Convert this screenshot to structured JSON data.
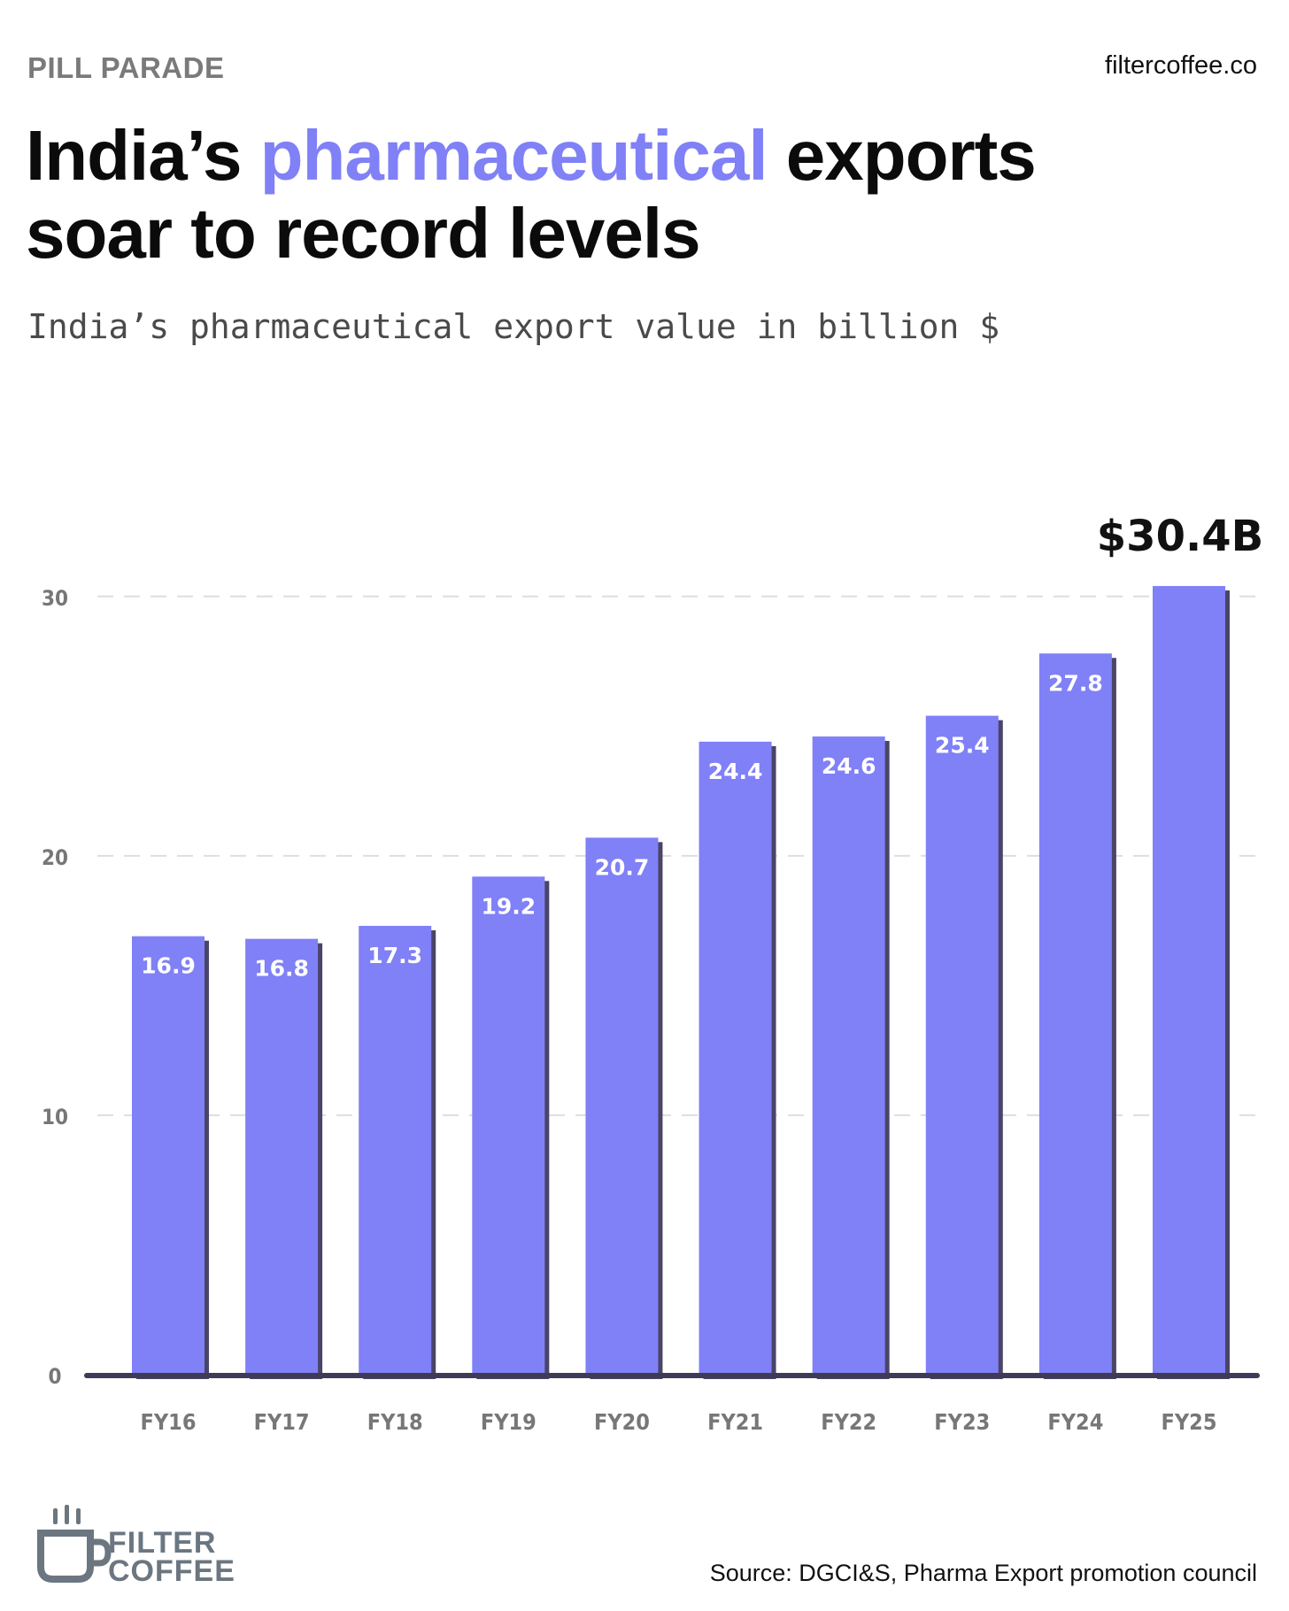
{
  "header": {
    "kicker": "PILL PARADE",
    "site": "filtercoffee.co",
    "title_part1": "India’s ",
    "title_highlight": "pharmaceutical",
    "title_part2": " exports",
    "title_line2": "soar to record levels",
    "subtitle": "India’s pharmaceutical export value in billion $"
  },
  "chart_data": {
    "type": "bar",
    "categories": [
      "FY16",
      "FY17",
      "FY18",
      "FY19",
      "FY20",
      "FY21",
      "FY22",
      "FY23",
      "FY24",
      "FY25"
    ],
    "values": [
      16.9,
      16.8,
      17.3,
      19.2,
      20.7,
      24.4,
      24.6,
      25.4,
      27.8,
      30.4
    ],
    "data_labels": [
      "16.9",
      "16.8",
      "17.3",
      "19.2",
      "20.7",
      "24.4",
      "24.6",
      "25.4",
      "27.8",
      ""
    ],
    "highlight_label": "$30.4B",
    "y_ticks": [
      0,
      10,
      20,
      30
    ],
    "ylim": [
      0,
      33.2
    ],
    "grid": true,
    "colors": {
      "bar": "#8080f7",
      "shadow": "#4a4566",
      "axis": "#3f3b57",
      "grid": "#dedede",
      "tick": "#777777"
    }
  },
  "footer": {
    "logo_line1": "FILTER",
    "logo_line2": "COFFEE",
    "source": "Source: DGCI&S, Pharma Export promotion council"
  }
}
